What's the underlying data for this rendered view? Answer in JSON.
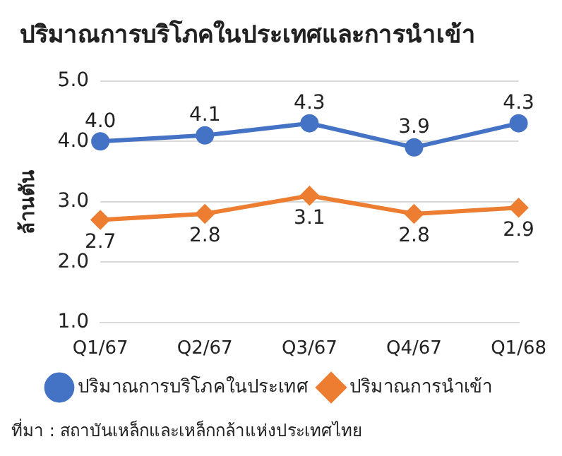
{
  "chart_data": {
    "type": "line",
    "title": "ปริมาณการบริโภคในประเทศและการนำเข้า",
    "ylabel": "ล้านตัน",
    "categories": [
      "Q1/67",
      "Q2/67",
      "Q3/67",
      "Q4/67",
      "Q1/68"
    ],
    "series": [
      {
        "name": "ปริมาณการบริโภคในประเทศ",
        "color": "#4472c4",
        "marker": "circle",
        "values": [
          4.0,
          4.1,
          4.3,
          3.9,
          4.3
        ],
        "value_labels": [
          "4.0",
          "4.1",
          "4.3",
          "3.9",
          "4.3"
        ]
      },
      {
        "name": "ปริมาณการนำเข้า",
        "color": "#ed7d31",
        "marker": "diamond",
        "values": [
          2.7,
          2.8,
          3.1,
          2.8,
          2.9
        ],
        "value_labels": [
          "2.7",
          "2.8",
          "3.1",
          "2.8",
          "2.9"
        ]
      }
    ],
    "ylim": [
      1.0,
      5.0
    ],
    "yticks": [
      {
        "value": 1,
        "label": "1.0"
      },
      {
        "value": 2,
        "label": "2.0"
      },
      {
        "value": 3,
        "label": "3.0"
      },
      {
        "value": 4,
        "label": "4.0"
      },
      {
        "value": 5,
        "label": "5.0"
      }
    ],
    "grid": "y",
    "legend": "bottom",
    "annotations": [
      "ที่มา : สถาบันเหล็กและเหล็กกล้าแห่งประเทศไทย"
    ]
  }
}
